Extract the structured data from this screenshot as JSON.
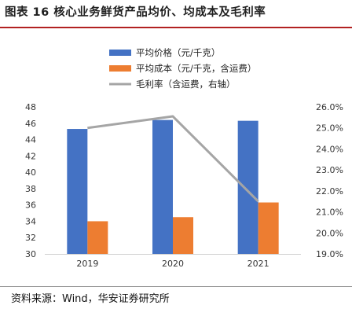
{
  "figure": {
    "title": "图表 16 核心业务鲜货产品均价、均成本及毛利率",
    "source": "资料来源：Wind，华安证券研究所"
  },
  "chart_data": {
    "type": "bar",
    "categories": [
      "2019",
      "2020",
      "2021"
    ],
    "series": [
      {
        "name": "平均价格（元/千克）",
        "kind": "bar",
        "axis": "left",
        "color": "#4472C4",
        "values": [
          45.3,
          46.4,
          46.3
        ]
      },
      {
        "name": "平均成本（元/千克，含运费）",
        "kind": "bar",
        "axis": "left",
        "color": "#ED7D31",
        "values": [
          34.0,
          34.5,
          36.3
        ]
      },
      {
        "name": "毛利率（含运费，右轴）",
        "kind": "line",
        "axis": "right",
        "color": "#A5A5A5",
        "values": [
          0.25,
          0.2555,
          0.215
        ]
      }
    ],
    "left_axis": {
      "ylim": [
        30,
        48
      ],
      "ticks": [
        "30",
        "32",
        "34",
        "36",
        "38",
        "40",
        "42",
        "44",
        "46",
        "48"
      ]
    },
    "right_axis": {
      "ylim": [
        0.19,
        0.26
      ],
      "ticks": [
        "19.0%",
        "20.0%",
        "21.0%",
        "22.0%",
        "23.0%",
        "24.0%",
        "25.0%",
        "26.0%"
      ]
    },
    "legend_position": "top",
    "grid": false
  }
}
